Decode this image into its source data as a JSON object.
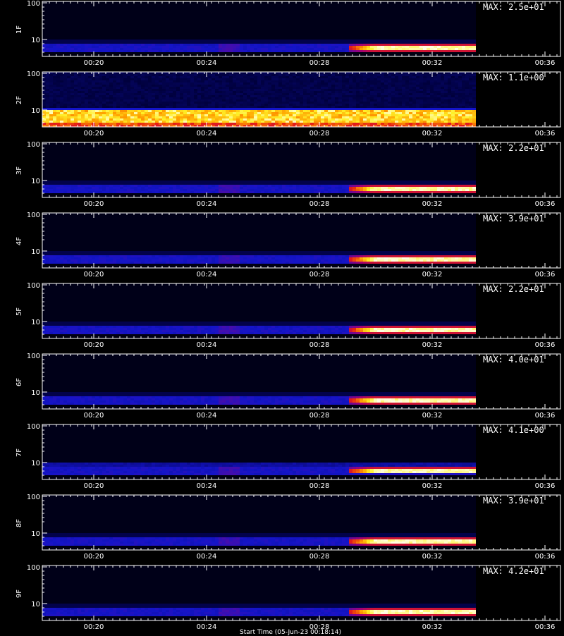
{
  "chart_data": {
    "type": "heatmap",
    "x_tick_labels": [
      "00:20",
      "00:24",
      "00:28",
      "00:32",
      "00:36"
    ],
    "y_tick_labels": [
      "100",
      "10"
    ],
    "footer_label": "Start Time (05-Jun-23 00:18:14)",
    "panels": [
      {
        "label": "1F",
        "max_label": "MAX: 2.5e+01",
        "low_band": [
          0.25,
          0.3,
          0.35,
          1.0
        ]
      },
      {
        "label": "2F",
        "max_label": "MAX: 1.1e+00",
        "low_band": [
          1.0,
          1.0,
          1.0,
          1.0
        ]
      },
      {
        "label": "3F",
        "max_label": "MAX: 2.2e+01",
        "low_band": [
          0.25,
          0.3,
          0.35,
          0.9
        ]
      },
      {
        "label": "4F",
        "max_label": "MAX: 3.9e+01",
        "low_band": [
          0.25,
          0.3,
          0.35,
          0.95
        ]
      },
      {
        "label": "5F",
        "max_label": "MAX: 2.2e+01",
        "low_band": [
          0.25,
          0.3,
          0.35,
          1.0
        ]
      },
      {
        "label": "6F",
        "max_label": "MAX: 4.0e+01",
        "low_band": [
          0.25,
          0.3,
          0.35,
          0.95
        ]
      },
      {
        "label": "7F",
        "max_label": "MAX: 4.1e+00",
        "low_band": [
          0.3,
          0.3,
          0.35,
          0.9
        ]
      },
      {
        "label": "8F",
        "max_label": "MAX: 3.9e+01",
        "low_band": [
          0.25,
          0.3,
          0.35,
          0.95
        ]
      },
      {
        "label": "9F",
        "max_label": "MAX: 4.2e+01",
        "low_band": [
          0.25,
          0.3,
          0.35,
          0.95
        ]
      }
    ]
  }
}
